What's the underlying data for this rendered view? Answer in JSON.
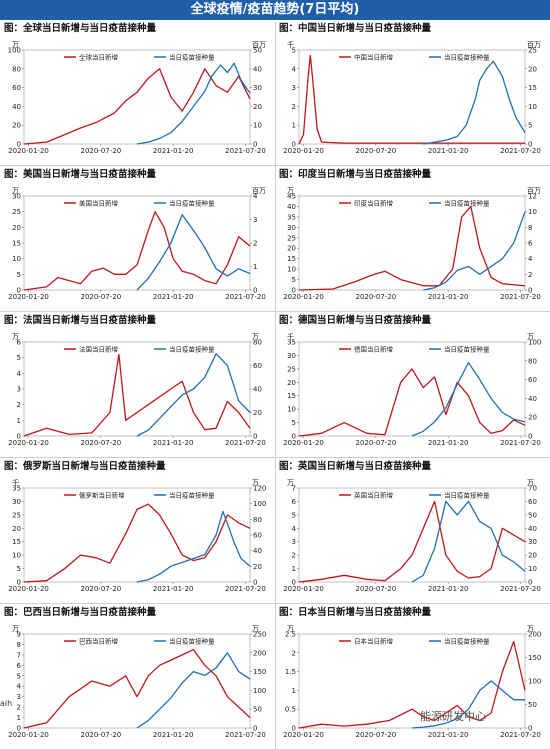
{
  "header": {
    "title": "全球疫情/疫苗趋势(7日平均)"
  },
  "footer": {
    "left_text": "aih",
    "watermark": "能源研发中心"
  },
  "colors": {
    "red": "#c0171c",
    "blue": "#1f6fb5",
    "banner": "#1f5fa8"
  },
  "x_ticks": [
    "2020-01-20",
    "2020-07-20",
    "2021-01-20",
    "2021-07-20"
  ],
  "chart_data": [
    {
      "type": "line",
      "title": "图：全球当日新增与当日疫苗接种量",
      "left_unit": "万",
      "right_unit": "百万",
      "left_ylim": [
        0,
        100
      ],
      "left_ticks": [
        0,
        20,
        40,
        60,
        80,
        100
      ],
      "right_ylim": [
        0,
        50
      ],
      "right_ticks": [
        0,
        10,
        20,
        30,
        40,
        50
      ],
      "grid": false,
      "legend_position": "top",
      "series": [
        {
          "name": "全球当日新增",
          "axis": "left",
          "color": "red",
          "x": [
            0,
            0.1,
            0.18,
            0.25,
            0.32,
            0.4,
            0.45,
            0.5,
            0.55,
            0.6,
            0.65,
            0.7,
            0.75,
            0.8,
            0.85,
            0.9,
            0.95,
            1.0
          ],
          "y": [
            0,
            2,
            10,
            17,
            23,
            33,
            46,
            55,
            70,
            80,
            50,
            35,
            55,
            80,
            62,
            55,
            72,
            48
          ]
        },
        {
          "name": "当日疫苗接种量",
          "axis": "right",
          "color": "blue",
          "x": [
            0.5,
            0.55,
            0.6,
            0.65,
            0.7,
            0.75,
            0.8,
            0.83,
            0.87,
            0.9,
            0.93,
            0.96,
            1.0
          ],
          "y": [
            0,
            1,
            3,
            6,
            12,
            20,
            28,
            36,
            42,
            38,
            43,
            34,
            27
          ]
        }
      ]
    },
    {
      "type": "line",
      "title": "图：中国当日新增与当日疫苗接种量",
      "left_unit": "千",
      "right_unit": "百万",
      "left_ylim": [
        0,
        5
      ],
      "left_ticks": [
        0,
        1,
        2,
        3,
        4,
        5
      ],
      "right_ylim": [
        0,
        25
      ],
      "right_ticks": [
        0,
        5,
        10,
        15,
        20,
        25
      ],
      "grid": false,
      "legend_position": "top",
      "series": [
        {
          "name": "中国当日新增",
          "axis": "left",
          "color": "red",
          "x": [
            0,
            0.02,
            0.04,
            0.05,
            0.06,
            0.08,
            0.1,
            0.2,
            0.4,
            0.6,
            0.8,
            1.0
          ],
          "y": [
            0,
            0.5,
            3.5,
            4.7,
            3.5,
            0.8,
            0.1,
            0.05,
            0.05,
            0.05,
            0.05,
            0.05
          ]
        },
        {
          "name": "当日疫苗接种量",
          "axis": "right",
          "color": "blue",
          "x": [
            0.55,
            0.6,
            0.65,
            0.7,
            0.74,
            0.78,
            0.8,
            0.83,
            0.86,
            0.9,
            0.93,
            0.96,
            1.0
          ],
          "y": [
            0,
            0.5,
            1,
            2,
            5,
            12,
            17,
            20,
            22,
            18,
            12,
            7,
            3
          ]
        }
      ]
    },
    {
      "type": "line",
      "title": "图：美国当日新增与当日疫苗接种量",
      "left_unit": "万",
      "right_unit": "百万",
      "left_ylim": [
        0,
        30
      ],
      "left_ticks": [
        0,
        5,
        10,
        15,
        20,
        25,
        30
      ],
      "right_ylim": [
        0,
        4
      ],
      "right_ticks": [
        0,
        1,
        2,
        3,
        4
      ],
      "grid": false,
      "legend_position": "top",
      "series": [
        {
          "name": "美国当日新增",
          "axis": "left",
          "color": "red",
          "x": [
            0,
            0.1,
            0.15,
            0.2,
            0.25,
            0.3,
            0.35,
            0.4,
            0.45,
            0.5,
            0.55,
            0.58,
            0.62,
            0.66,
            0.7,
            0.75,
            0.8,
            0.85,
            0.9,
            0.95,
            1.0
          ],
          "y": [
            0,
            1,
            4,
            3,
            2,
            6,
            7,
            5,
            5,
            8,
            19,
            25,
            20,
            10,
            6,
            5,
            3,
            2,
            8,
            17,
            14
          ]
        },
        {
          "name": "当日疫苗接种量",
          "axis": "right",
          "color": "blue",
          "x": [
            0.5,
            0.55,
            0.6,
            0.65,
            0.7,
            0.73,
            0.76,
            0.8,
            0.85,
            0.9,
            0.95,
            1.0
          ],
          "y": [
            0,
            0.5,
            1.2,
            2,
            3.2,
            2.8,
            2.4,
            1.8,
            0.9,
            0.6,
            0.9,
            0.7
          ]
        }
      ]
    },
    {
      "type": "line",
      "title": "图：印度当日新增与当日疫苗接种量",
      "left_unit": "万",
      "right_unit": "百万",
      "left_ylim": [
        0,
        45
      ],
      "left_ticks": [
        0,
        5,
        10,
        15,
        20,
        25,
        30,
        35,
        40,
        45
      ],
      "right_ylim": [
        0,
        12
      ],
      "right_ticks": [
        0,
        2,
        4,
        6,
        8,
        10,
        12
      ],
      "grid": false,
      "legend_position": "top",
      "series": [
        {
          "name": "印度当日新增",
          "axis": "left",
          "color": "red",
          "x": [
            0,
            0.15,
            0.25,
            0.32,
            0.38,
            0.45,
            0.55,
            0.62,
            0.68,
            0.72,
            0.76,
            0.8,
            0.85,
            0.9,
            1.0
          ],
          "y": [
            0,
            0.5,
            4,
            7,
            9,
            5,
            2,
            2,
            10,
            35,
            40,
            20,
            6,
            3,
            2
          ]
        },
        {
          "name": "当日疫苗接种量",
          "axis": "right",
          "color": "blue",
          "x": [
            0.55,
            0.6,
            0.65,
            0.7,
            0.75,
            0.8,
            0.85,
            0.9,
            0.95,
            1.0
          ],
          "y": [
            0,
            0.3,
            1,
            2.5,
            3,
            2,
            3,
            4,
            6,
            10
          ]
        }
      ]
    },
    {
      "type": "line",
      "title": "图：法国当日新增与当日疫苗接种量",
      "left_unit": "万",
      "right_unit": "万",
      "left_ylim": [
        0,
        6
      ],
      "left_ticks": [
        0,
        1,
        2,
        3,
        4,
        5,
        6
      ],
      "right_ylim": [
        0,
        80
      ],
      "right_ticks": [
        0,
        20,
        40,
        60,
        80
      ],
      "grid": false,
      "legend_position": "top",
      "series": [
        {
          "name": "法国当日新增",
          "axis": "left",
          "color": "red",
          "x": [
            0,
            0.1,
            0.2,
            0.3,
            0.38,
            0.42,
            0.45,
            0.5,
            0.55,
            0.6,
            0.65,
            0.7,
            0.75,
            0.8,
            0.85,
            0.9,
            0.95,
            1.0
          ],
          "y": [
            0,
            0.5,
            0.1,
            0.2,
            1.5,
            5.2,
            1,
            1.5,
            2,
            2.5,
            3,
            3.5,
            1.5,
            0.4,
            0.5,
            2.2,
            1.5,
            0.5
          ]
        },
        {
          "name": "当日疫苗接种量",
          "axis": "right",
          "color": "blue",
          "x": [
            0.5,
            0.55,
            0.6,
            0.65,
            0.7,
            0.75,
            0.8,
            0.85,
            0.9,
            0.95,
            1.0
          ],
          "y": [
            0,
            5,
            15,
            25,
            35,
            40,
            50,
            70,
            60,
            30,
            20
          ]
        }
      ]
    },
    {
      "type": "line",
      "title": "图：德国当日新增与当日疫苗接种量",
      "left_unit": "千",
      "right_unit": "万",
      "left_ylim": [
        0,
        35
      ],
      "left_ticks": [
        0,
        5,
        10,
        15,
        20,
        25,
        30,
        35
      ],
      "right_ylim": [
        0,
        100
      ],
      "right_ticks": [
        0,
        20,
        40,
        60,
        80,
        100
      ],
      "grid": false,
      "legend_position": "top",
      "series": [
        {
          "name": "德国当日新增",
          "axis": "left",
          "color": "red",
          "x": [
            0,
            0.1,
            0.2,
            0.3,
            0.38,
            0.45,
            0.5,
            0.55,
            0.6,
            0.65,
            0.7,
            0.75,
            0.8,
            0.85,
            0.9,
            0.95,
            1.0
          ],
          "y": [
            0,
            1,
            5,
            1,
            0.5,
            20,
            25,
            18,
            22,
            8,
            20,
            15,
            5,
            1,
            2,
            6,
            4
          ]
        },
        {
          "name": "当日疫苗接种量",
          "axis": "right",
          "color": "blue",
          "x": [
            0.5,
            0.55,
            0.6,
            0.65,
            0.7,
            0.75,
            0.8,
            0.85,
            0.9,
            0.95,
            1.0
          ],
          "y": [
            0,
            5,
            15,
            30,
            55,
            78,
            60,
            40,
            25,
            18,
            15
          ]
        }
      ]
    },
    {
      "type": "line",
      "title": "图：俄罗斯当日新增与当日疫苗接种量",
      "left_unit": "千",
      "right_unit": "万",
      "left_ylim": [
        0,
        35
      ],
      "left_ticks": [
        0,
        5,
        10,
        15,
        20,
        25,
        30,
        35
      ],
      "right_ylim": [
        0,
        120
      ],
      "right_ticks": [
        0,
        20,
        40,
        60,
        80,
        100,
        120
      ],
      "grid": false,
      "legend_position": "top",
      "series": [
        {
          "name": "俄罗斯当日新增",
          "axis": "left",
          "color": "red",
          "x": [
            0,
            0.1,
            0.18,
            0.25,
            0.32,
            0.38,
            0.45,
            0.5,
            0.55,
            0.6,
            0.65,
            0.7,
            0.75,
            0.8,
            0.85,
            0.9,
            0.95,
            1.0
          ],
          "y": [
            0,
            0.5,
            5,
            10,
            9,
            7,
            18,
            27,
            29,
            25,
            18,
            10,
            8,
            9,
            15,
            25,
            22,
            20
          ]
        },
        {
          "name": "当日疫苗接种量",
          "axis": "right",
          "color": "blue",
          "x": [
            0.5,
            0.55,
            0.6,
            0.65,
            0.7,
            0.75,
            0.8,
            0.85,
            0.88,
            0.9,
            0.93,
            0.96,
            1.0
          ],
          "y": [
            0,
            3,
            10,
            20,
            25,
            30,
            35,
            60,
            90,
            75,
            50,
            30,
            20
          ]
        }
      ]
    },
    {
      "type": "line",
      "title": "图：英国当日新增与当日疫苗接种量",
      "left_unit": "万",
      "right_unit": "万",
      "left_ylim": [
        0,
        7
      ],
      "left_ticks": [
        0,
        1,
        2,
        3,
        4,
        5,
        6,
        7
      ],
      "right_ylim": [
        0,
        70
      ],
      "right_ticks": [
        0,
        10,
        20,
        30,
        40,
        50,
        60,
        70
      ],
      "grid": false,
      "legend_position": "top",
      "series": [
        {
          "name": "英国当日新增",
          "axis": "left",
          "color": "red",
          "x": [
            0,
            0.1,
            0.2,
            0.3,
            0.38,
            0.45,
            0.5,
            0.55,
            0.6,
            0.65,
            0.7,
            0.75,
            0.8,
            0.85,
            0.9,
            0.95,
            1.0
          ],
          "y": [
            0,
            0.2,
            0.5,
            0.2,
            0.1,
            1,
            2,
            4,
            6,
            2,
            0.8,
            0.3,
            0.4,
            1,
            4,
            3.5,
            3
          ]
        },
        {
          "name": "当日疫苗接种量",
          "axis": "right",
          "color": "blue",
          "x": [
            0.5,
            0.55,
            0.6,
            0.65,
            0.7,
            0.75,
            0.8,
            0.85,
            0.9,
            0.95,
            1.0
          ],
          "y": [
            0,
            5,
            25,
            60,
            50,
            60,
            45,
            40,
            20,
            15,
            8
          ]
        }
      ]
    },
    {
      "type": "line",
      "title": "图：巴西当日新增与当日疫苗接种量",
      "left_unit": "万",
      "right_unit": "万",
      "left_ylim": [
        0,
        9
      ],
      "left_ticks": [
        0,
        1,
        2,
        3,
        4,
        5,
        6,
        7,
        8,
        9
      ],
      "right_ylim": [
        0,
        250
      ],
      "right_ticks": [
        0,
        50,
        100,
        150,
        200,
        250
      ],
      "grid": false,
      "legend_position": "top",
      "series": [
        {
          "name": "巴西当日新增",
          "axis": "left",
          "color": "red",
          "x": [
            0,
            0.1,
            0.2,
            0.3,
            0.38,
            0.45,
            0.5,
            0.55,
            0.6,
            0.65,
            0.7,
            0.75,
            0.8,
            0.85,
            0.9,
            0.95,
            1.0
          ],
          "y": [
            0,
            0.5,
            3,
            4.5,
            4,
            5,
            3,
            5,
            6,
            6.5,
            7,
            7.5,
            6,
            5,
            3,
            2,
            1
          ]
        },
        {
          "name": "当日疫苗接种量",
          "axis": "right",
          "color": "blue",
          "x": [
            0.5,
            0.55,
            0.6,
            0.65,
            0.7,
            0.75,
            0.8,
            0.85,
            0.9,
            0.95,
            1.0
          ],
          "y": [
            0,
            20,
            50,
            80,
            120,
            150,
            140,
            160,
            200,
            150,
            130
          ]
        }
      ]
    },
    {
      "type": "line",
      "title": "图：日本当日新增与当日疫苗接种量",
      "left_unit": "万",
      "right_unit": "万",
      "left_ylim": [
        0,
        2.5
      ],
      "left_ticks": [
        0,
        0.5,
        1,
        1.5,
        2,
        2.5
      ],
      "right_ylim": [
        0,
        200
      ],
      "right_ticks": [
        0,
        50,
        100,
        150,
        200
      ],
      "grid": false,
      "legend_position": "top",
      "series": [
        {
          "name": "日本当日新增",
          "axis": "left",
          "color": "red",
          "x": [
            0,
            0.1,
            0.2,
            0.3,
            0.4,
            0.5,
            0.55,
            0.6,
            0.65,
            0.7,
            0.75,
            0.8,
            0.85,
            0.9,
            0.95,
            1.0
          ],
          "y": [
            0,
            0.1,
            0.05,
            0.1,
            0.2,
            0.5,
            0.3,
            0.2,
            0.4,
            0.6,
            0.3,
            0.2,
            0.4,
            1.5,
            2.3,
            1
          ]
        },
        {
          "name": "当日疫苗接种量",
          "axis": "right",
          "color": "blue",
          "x": [
            0.5,
            0.55,
            0.6,
            0.65,
            0.7,
            0.75,
            0.8,
            0.85,
            0.9,
            0.95,
            1.0
          ],
          "y": [
            0,
            2,
            5,
            10,
            20,
            40,
            80,
            100,
            80,
            60,
            60
          ]
        }
      ]
    }
  ]
}
